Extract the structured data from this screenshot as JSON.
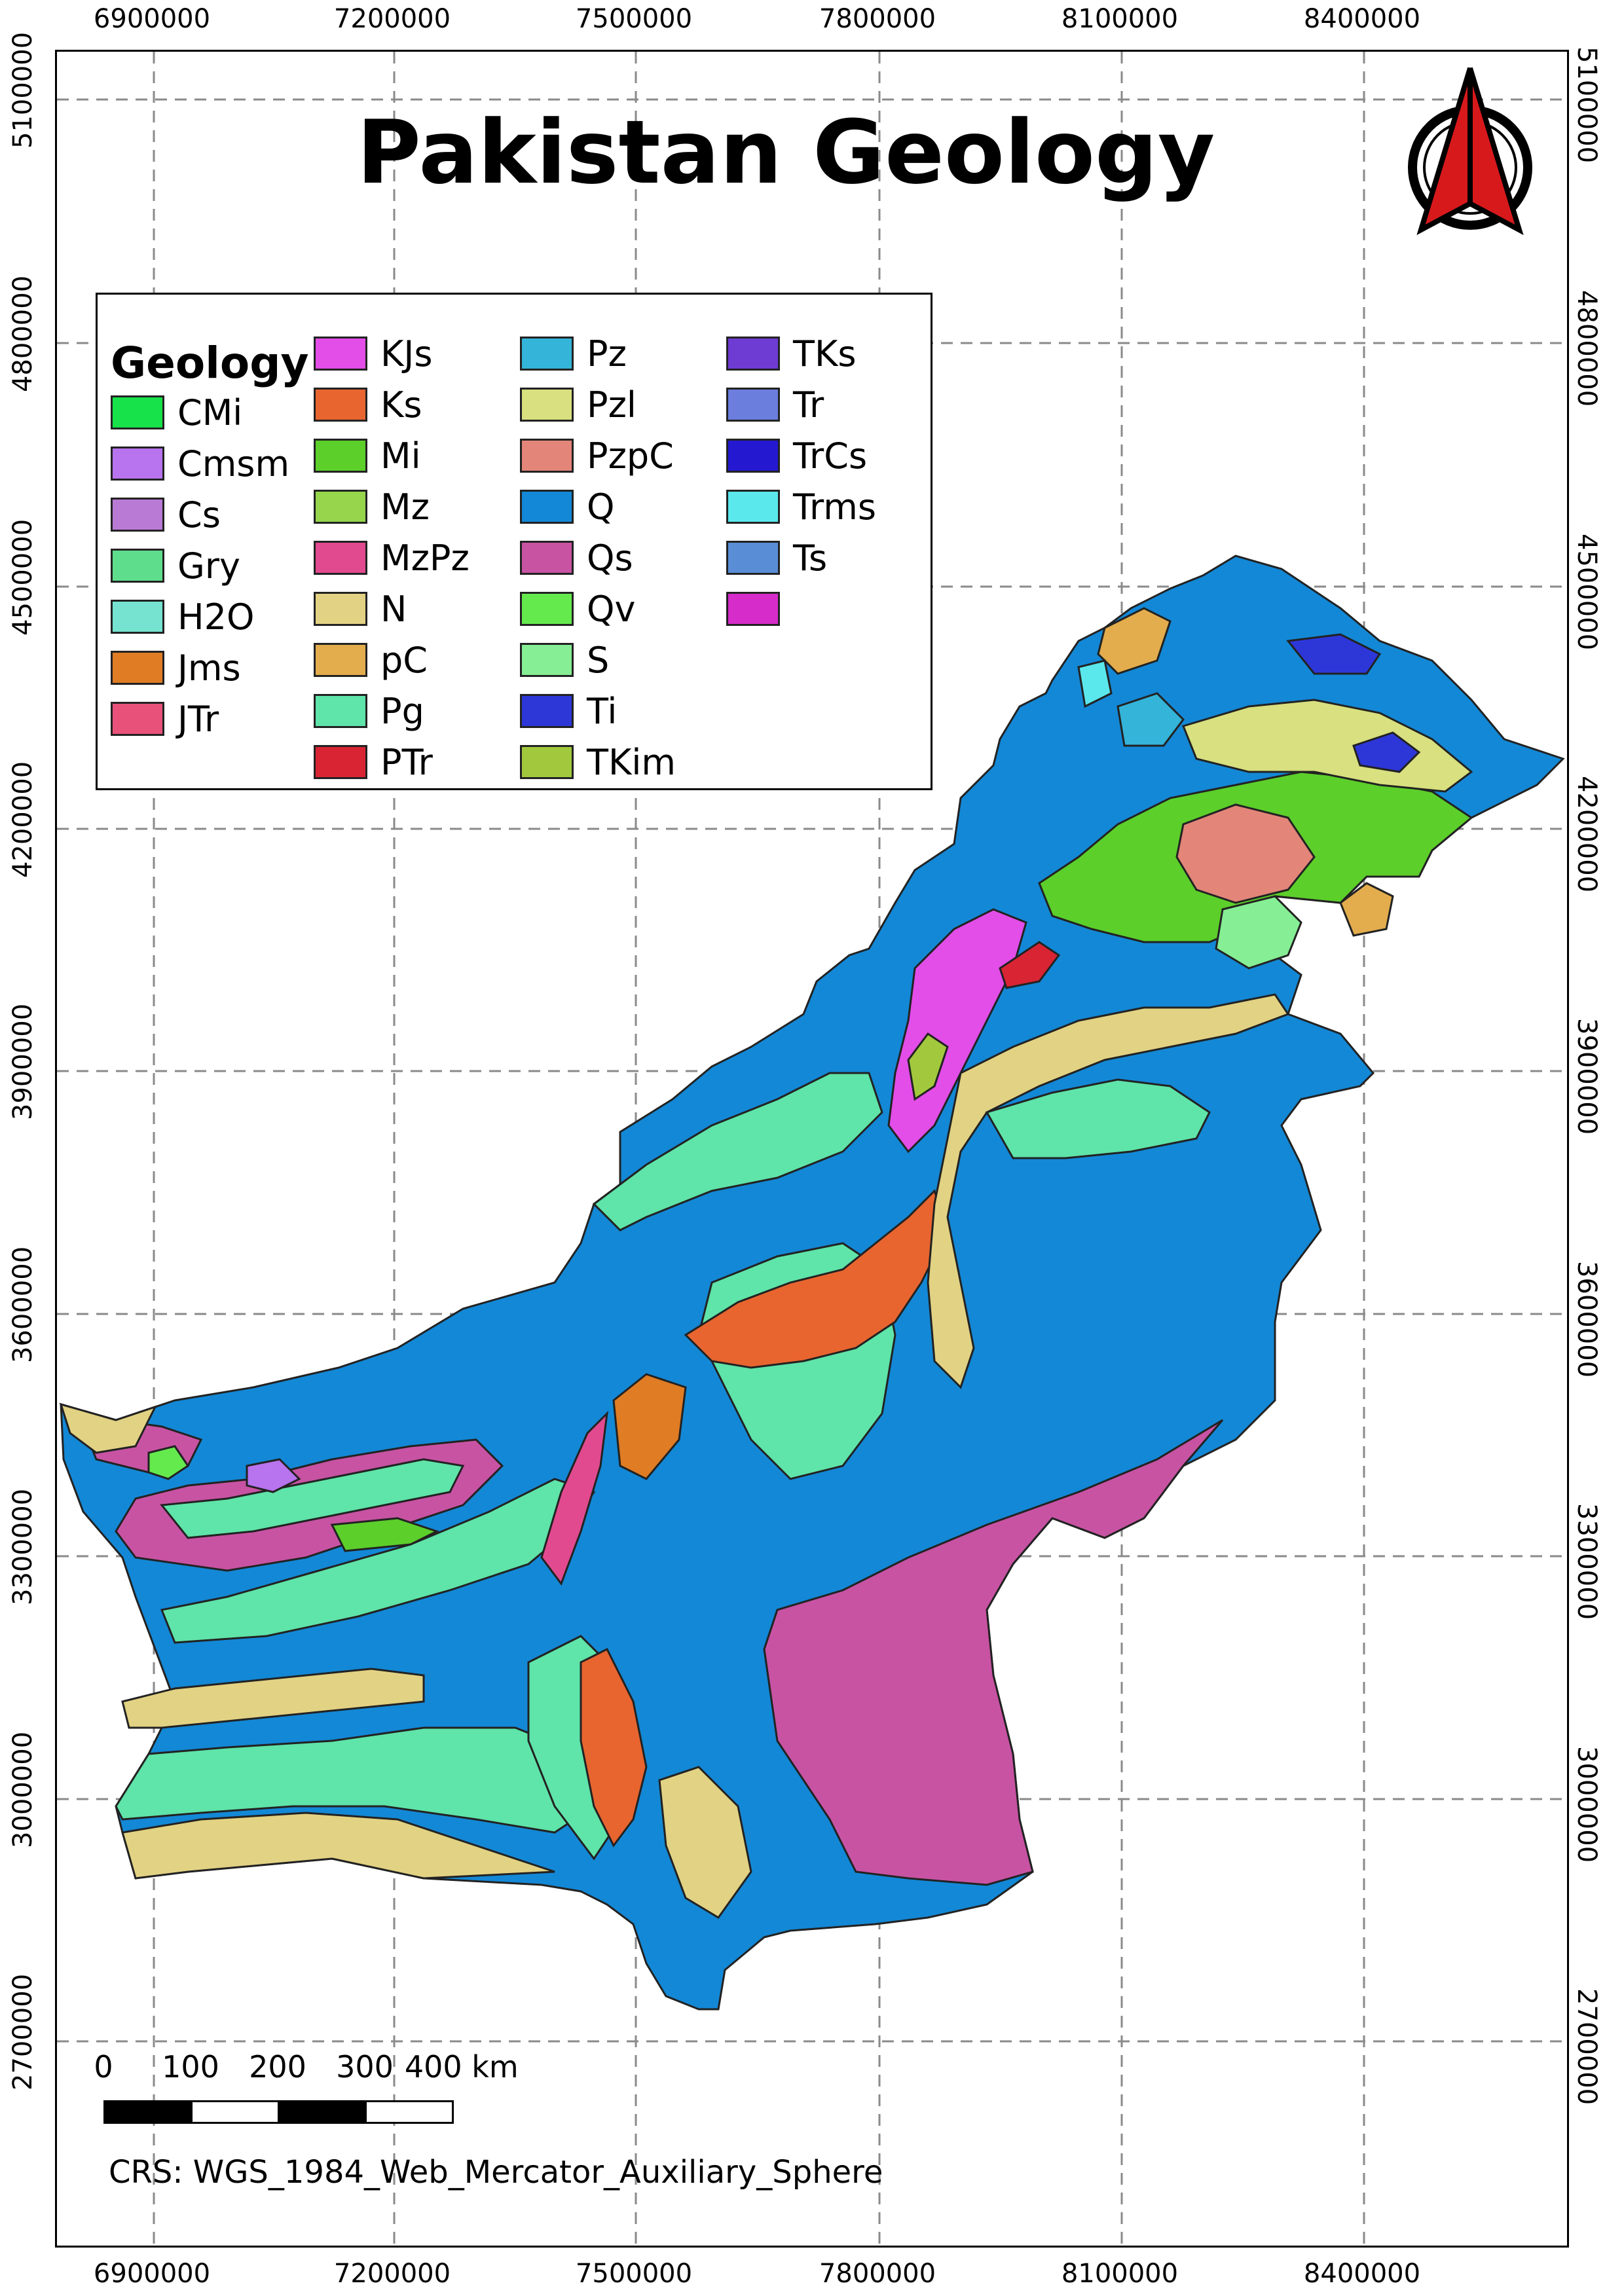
{
  "map": {
    "title": "Pakistan Geology",
    "crs_label": "CRS: WGS_1984_Web_Mercator_Auxiliary_Sphere",
    "x_ticks": [
      "6900000",
      "7200000",
      "7500000",
      "7800000",
      "8100000",
      "8400000"
    ],
    "y_ticks": [
      "5100000",
      "4800000",
      "4500000",
      "4200000",
      "3900000",
      "3600000",
      "3300000",
      "3000000",
      "2700000"
    ],
    "grid": true,
    "grid_style": "dashed",
    "scale_bar": {
      "labels": [
        "0",
        "100",
        "200",
        "300",
        "400 km"
      ],
      "segment_colors": [
        "#000000",
        "#ffffff",
        "#000000",
        "#ffffff"
      ]
    },
    "north_arrow": {
      "icon": "north-arrow-icon",
      "colors": [
        "#d7191c",
        "#000000"
      ]
    },
    "outline_color": "#222222"
  },
  "legend": {
    "title": "Geology",
    "items": [
      {
        "label": "CMi",
        "color": "#17e24a"
      },
      {
        "label": "Cmsm",
        "color": "#b873ee"
      },
      {
        "label": "Cs",
        "color": "#b97ad6"
      },
      {
        "label": "Gry",
        "color": "#5ede8c"
      },
      {
        "label": "H2O",
        "color": "#75e3cf"
      },
      {
        "label": "Jms",
        "color": "#df7c24"
      },
      {
        "label": "JTr",
        "color": "#e8527a"
      },
      {
        "label": "KJs",
        "color": "#e34de8"
      },
      {
        "label": "Ks",
        "color": "#e8652f"
      },
      {
        "label": "Mi",
        "color": "#5ccf2a"
      },
      {
        "label": "Mz",
        "color": "#96d54c"
      },
      {
        "label": "MzPz",
        "color": "#e24a8f"
      },
      {
        "label": "N",
        "color": "#e2d283"
      },
      {
        "label": "pC",
        "color": "#e3ad4d"
      },
      {
        "label": "Pg",
        "color": "#5fe4a9"
      },
      {
        "label": "PTr",
        "color": "#d92434"
      },
      {
        "label": "Pz",
        "color": "#34b4d8"
      },
      {
        "label": "Pzl",
        "color": "#d8e07f"
      },
      {
        "label": "PzpC",
        "color": "#e38579"
      },
      {
        "label": "Q",
        "color": "#1388d6"
      },
      {
        "label": "Qs",
        "color": "#c853a3"
      },
      {
        "label": "Qv",
        "color": "#65ea4e"
      },
      {
        "label": "S",
        "color": "#86ee94"
      },
      {
        "label": "Ti",
        "color": "#2d37d8"
      },
      {
        "label": "TKim",
        "color": "#a2c93d"
      },
      {
        "label": "TKs",
        "color": "#6e3bd3"
      },
      {
        "label": "Tr",
        "color": "#6b7ede"
      },
      {
        "label": "TrCs",
        "color": "#2418d0"
      },
      {
        "label": "Trms",
        "color": "#5ae8ec"
      },
      {
        "label": "Ts",
        "color": "#598ed6"
      },
      {
        "label": "",
        "color": "#d62cc9"
      }
    ]
  }
}
